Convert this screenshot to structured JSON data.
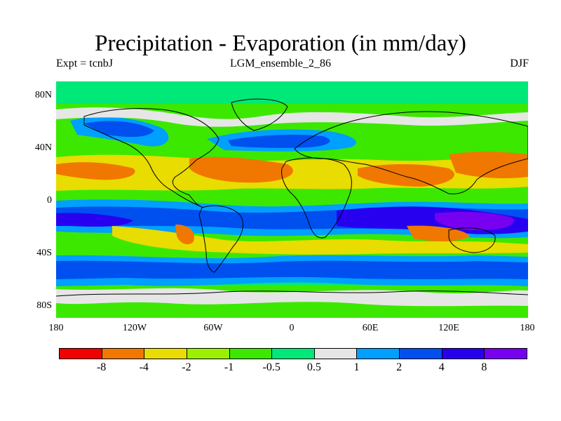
{
  "title": "Precipitation - Evaporation (in mm/day)",
  "subtitle_left": "Expt = tcnbJ",
  "subtitle_center": "LGM_ensemble_2_86",
  "subtitle_right": "DJF",
  "y_labels": [
    "80N",
    "40N",
    "0",
    "40S",
    "80S"
  ],
  "x_labels": [
    "180",
    "120W",
    "60W",
    "0",
    "60E",
    "120E",
    "180"
  ],
  "colorbar": {
    "colors": [
      "#f00000",
      "#f07800",
      "#e8dc00",
      "#9bf000",
      "#3ce800",
      "#00e878",
      "#e6e6e6",
      "#00a0ff",
      "#0050f0",
      "#2800f0",
      "#7800f0"
    ],
    "labels": [
      "-8",
      "-4",
      "-2",
      "-1",
      "-0.5",
      "0.5",
      "1",
      "2",
      "4",
      "8"
    ]
  },
  "map_palette": {
    "background": "#3ce800",
    "deep_dry": "#f07800",
    "dry": "#e8dc00",
    "moderate_dry": "#9bf000",
    "near_zero": "#00e878",
    "neutral": "#e6e6e6",
    "wet": "#00a0ff",
    "very_wet": "#0050f0",
    "wettest": "#2800f0",
    "extreme_wet": "#7800f0"
  }
}
